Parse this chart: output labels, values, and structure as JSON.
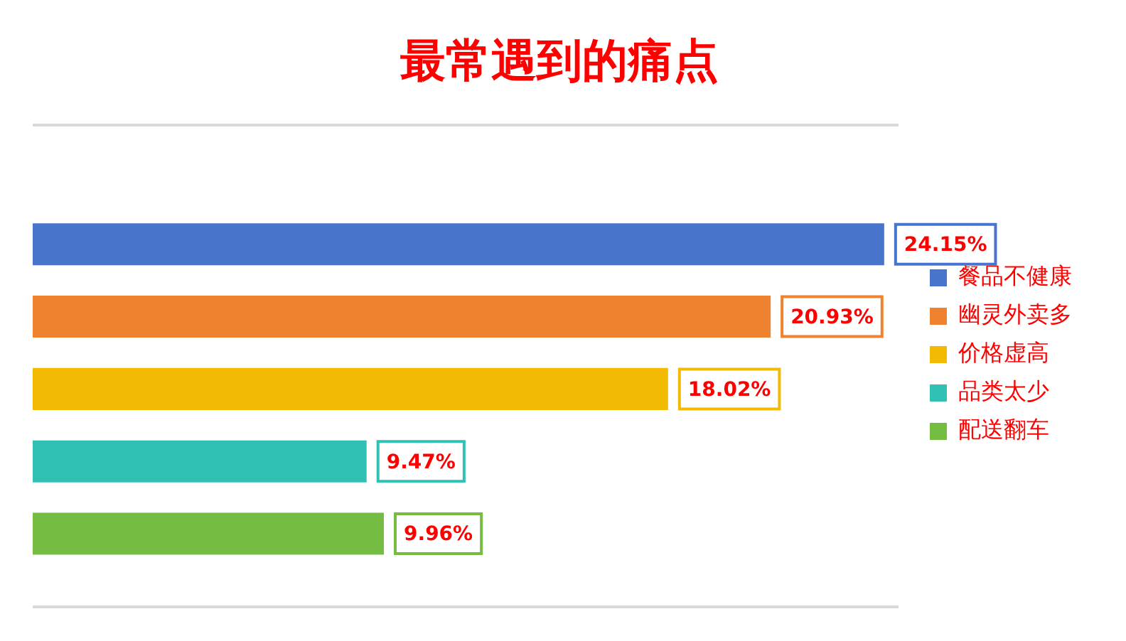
{
  "chart_data": {
    "type": "bar",
    "orientation": "horizontal",
    "title": "最常遇到的痛点",
    "categories": [
      null,
      null,
      null,
      null,
      null
    ],
    "series": [
      {
        "name": "餐品不健康",
        "color": "#4874cb",
        "values": [
          24.15,
          null,
          null,
          null,
          null
        ],
        "value_labels": [
          "24.15%",
          null,
          null,
          null,
          null
        ]
      },
      {
        "name": "幽灵外卖多",
        "color": "#ee822f",
        "values": [
          null,
          20.93,
          null,
          null,
          null
        ],
        "value_labels": [
          null,
          "20.93%",
          null,
          null,
          null
        ]
      },
      {
        "name": "价格虚高",
        "color": "#f2ba02",
        "values": [
          null,
          null,
          18.02,
          null,
          null
        ],
        "value_labels": [
          null,
          null,
          "18.02%",
          null,
          null
        ]
      },
      {
        "name": "品类太少",
        "color": "#30c0b4",
        "values": [
          null,
          null,
          null,
          9.47,
          null
        ],
        "value_labels": [
          null,
          null,
          null,
          "9.47%",
          null
        ]
      },
      {
        "name": "配送翻车",
        "color": "#75bd42",
        "values": [
          null,
          null,
          null,
          null,
          9.96
        ],
        "value_labels": [
          null,
          null,
          null,
          null,
          "9.96%"
        ]
      }
    ],
    "stacked": true,
    "tick_labels": false,
    "grid": false,
    "legend": "right"
  }
}
